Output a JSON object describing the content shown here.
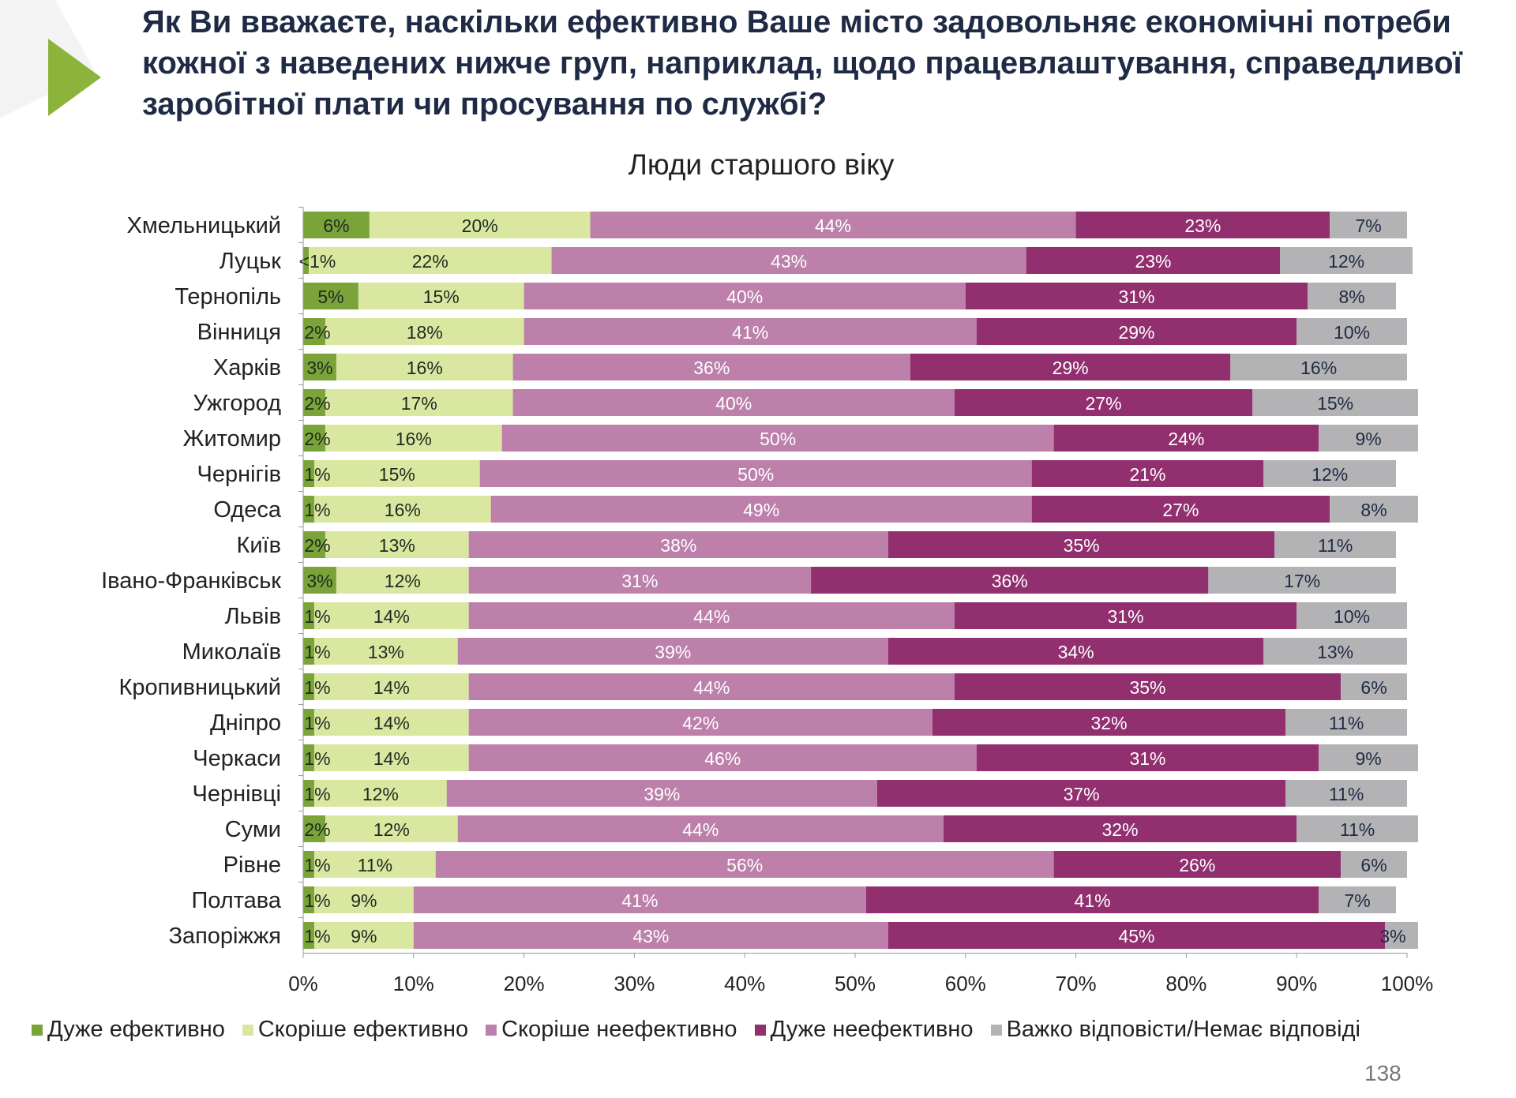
{
  "title": "Як Ви вважаєте, наскільки ефективно Ваше місто задовольняє економічні потреби кожної з наведених нижче груп, наприклад, щодо працевлаштування, справедливої заробітної плати чи просування по службі?",
  "page_number": "138",
  "colors": {
    "accent": "#7aa33a"
  },
  "chart_data": {
    "type": "bar",
    "orientation": "horizontal",
    "stacked": true,
    "title": "Люди старшого віку",
    "xlim": [
      0,
      100
    ],
    "x_ticks": [
      "0%",
      "10%",
      "20%",
      "30%",
      "40%",
      "50%",
      "60%",
      "70%",
      "80%",
      "90%",
      "100%"
    ],
    "legend_position": "bottom",
    "grid": false,
    "categories": [
      "Хмельницький",
      "Луцьк",
      "Тернопіль",
      "Вінниця",
      "Харків",
      "Ужгород",
      "Житомир",
      "Чернігів",
      "Одеса",
      "Київ",
      "Івано-Франківськ",
      "Львів",
      "Миколаїв",
      "Кропивницький",
      "Дніпро",
      "Черкаси",
      "Чернівці",
      "Суми",
      "Рівне",
      "Полтава",
      "Запоріжжя"
    ],
    "series": [
      {
        "name": "Дуже ефективно",
        "color": "#7aa33a",
        "label_color": "#1f2a1f",
        "values": [
          6,
          0.5,
          5,
          2,
          3,
          2,
          2,
          1,
          1,
          2,
          3,
          1,
          1,
          1,
          1,
          1,
          1,
          2,
          1,
          1,
          1
        ],
        "labels": [
          "6%",
          "<1%",
          "5%",
          "2%",
          "3%",
          "2%",
          "2%",
          "1%",
          "1%",
          "2%",
          "3%",
          "1%",
          "1%",
          "1%",
          "1%",
          "1%",
          "1%",
          "2%",
          "1%",
          "1%",
          "1%"
        ]
      },
      {
        "name": "Скоріше ефективно",
        "color": "#d9e7a1",
        "label_color": "#1f2a1f",
        "values": [
          20,
          22,
          15,
          18,
          16,
          17,
          16,
          15,
          16,
          13,
          12,
          14,
          13,
          14,
          14,
          14,
          12,
          12,
          11,
          9,
          9
        ],
        "labels": [
          "20%",
          "22%",
          "15%",
          "18%",
          "16%",
          "17%",
          "16%",
          "15%",
          "16%",
          "13%",
          "12%",
          "14%",
          "13%",
          "14%",
          "14%",
          "14%",
          "12%",
          "12%",
          "11%",
          "9%",
          "9%"
        ]
      },
      {
        "name": "Скоріше неефективно",
        "color": "#bc80ab",
        "label_color": "#ffffff",
        "values": [
          44,
          43,
          40,
          41,
          36,
          40,
          50,
          50,
          49,
          38,
          31,
          44,
          39,
          44,
          42,
          46,
          39,
          44,
          56,
          41,
          43
        ],
        "labels": [
          "44%",
          "43%",
          "40%",
          "41%",
          "36%",
          "40%",
          "50%",
          "50%",
          "49%",
          "38%",
          "31%",
          "44%",
          "39%",
          "44%",
          "42%",
          "46%",
          "39%",
          "44%",
          "56%",
          "41%",
          "43%"
        ]
      },
      {
        "name": "Дуже неефективно",
        "color": "#912f6f",
        "label_color": "#ffffff",
        "values": [
          23,
          23,
          31,
          29,
          29,
          27,
          24,
          21,
          27,
          35,
          36,
          31,
          34,
          35,
          32,
          31,
          37,
          32,
          26,
          41,
          45
        ],
        "labels": [
          "23%",
          "23%",
          "31%",
          "29%",
          "29%",
          "27%",
          "24%",
          "21%",
          "27%",
          "35%",
          "36%",
          "31%",
          "34%",
          "35%",
          "32%",
          "31%",
          "37%",
          "32%",
          "26%",
          "41%",
          "45%"
        ]
      },
      {
        "name": "Важко відповісти/Немає відповіді",
        "color": "#b3b3b5",
        "label_color": "#1f2a44",
        "values": [
          7,
          12,
          8,
          10,
          16,
          15,
          9,
          12,
          8,
          11,
          17,
          10,
          13,
          6,
          11,
          9,
          11,
          11,
          6,
          7,
          3
        ],
        "labels": [
          "7%",
          "12%",
          "8%",
          "10%",
          "16%",
          "15%",
          "9%",
          "12%",
          "8%",
          "11%",
          "17%",
          "10%",
          "13%",
          "6%",
          "11%",
          "9%",
          "11%",
          "11%",
          "6%",
          "7%",
          "3%"
        ]
      }
    ]
  }
}
